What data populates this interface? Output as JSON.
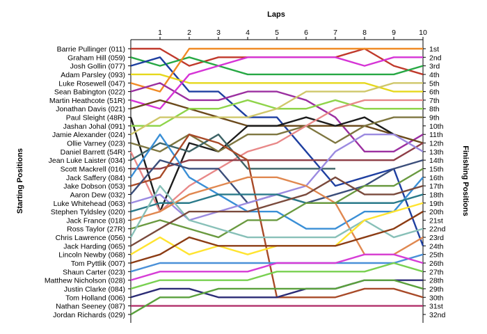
{
  "chart_data": {
    "type": "line",
    "title": "Laps",
    "ylabel_left": "Starting Positions",
    "ylabel_right": "Finishing Positions",
    "laps": [
      1,
      2,
      3,
      4,
      5,
      6,
      7,
      8,
      9,
      10
    ],
    "start_labels": [
      "Barrie Pullinger (011)",
      "Graham Hill (059)",
      "Josh Gollin (077)",
      "Adam Parsley (093)",
      "Luke Rosewell (047)",
      "Sean Babington (022)",
      "Martin Heathcote (51R)",
      "Jonathan Davis (021)",
      "Paul Sleight (48R)",
      "Jashan Johal (091)",
      "Jamie Alexander (024)",
      "Ollie Varney (023)",
      "Daniel Barrett (54R)",
      "Jean Luke Laister (034)",
      "Scott Mackrell (016)",
      "Jack Saffery (084)",
      "Jake Dobson (053)",
      "Aaron Dew (032)",
      "Luke Whitehead (063)",
      "Stephen Tyldsley (020)",
      "Jack France (018)",
      "Ross Taylor (27R)",
      "Chris Lawrence (056)",
      "Jack Harding (065)",
      "Lincoln Newby (068)",
      "Tom Pyttlik (007)",
      "Shaun Carter (023)",
      "Matthew Nicholson (028)",
      "Justin Clarke (084)",
      "Tom Holland (006)",
      "Nathan Seeney (087)",
      "Jordan Richards (029)"
    ],
    "finish_labels": [
      "1st",
      "2nd",
      "3rd",
      "4th",
      "5th",
      "6th",
      "7th",
      "8th",
      "9th",
      "10th",
      "11th",
      "12th",
      "13th",
      "14th",
      "15th",
      "16th",
      "17th",
      "18th",
      "19th",
      "20th",
      "21st",
      "22nd",
      "23rd",
      "24th",
      "25th",
      "26th",
      "27th",
      "28th",
      "29th",
      "30th",
      "31st",
      "32nd"
    ],
    "series": [
      {
        "color": "#c0392b",
        "positions": [
          1,
          3,
          2,
          2,
          2,
          2,
          2,
          1,
          3,
          4
        ]
      },
      {
        "color": "#27a844",
        "positions": [
          3,
          2,
          3,
          4,
          4,
          4,
          4,
          4,
          4,
          3
        ]
      },
      {
        "color": "#1e3fa0",
        "positions": [
          2,
          6,
          6,
          9,
          9,
          13,
          17,
          16,
          15,
          24
        ]
      },
      {
        "color": "#e6d81c",
        "positions": [
          4,
          5,
          5,
          5,
          5,
          5,
          5,
          5,
          6,
          6
        ]
      },
      {
        "color": "#f08a24",
        "positions": [
          6,
          1,
          1,
          1,
          1,
          1,
          1,
          1,
          1,
          1
        ]
      },
      {
        "color": "#9b2fa0",
        "positions": [
          5,
          7,
          7,
          6,
          6,
          7,
          9,
          13,
          13,
          11
        ]
      },
      {
        "color": "#d634d6",
        "positions": [
          8,
          4,
          3,
          2,
          2,
          2,
          2,
          3,
          2,
          2
        ]
      },
      {
        "color": "#6b4a1c",
        "positions": [
          7,
          8,
          9,
          10,
          10,
          10,
          10,
          10,
          11,
          12
        ]
      },
      {
        "color": "#1c1c1c",
        "positions": [
          20,
          12,
          13,
          10,
          10,
          9,
          10,
          9,
          11,
          null
        ]
      },
      {
        "color": "#8fd44a",
        "positions": [
          10,
          8,
          8,
          7,
          8,
          8,
          7,
          8,
          8,
          8
        ]
      },
      {
        "color": "#cfc76a",
        "positions": [
          9,
          9,
          9,
          9,
          8,
          6,
          6,
          6,
          5,
          5
        ]
      },
      {
        "color": "#7e7640",
        "positions": [
          13,
          11,
          13,
          11,
          11,
          10,
          12,
          10,
          9,
          9
        ]
      },
      {
        "color": "#e88888",
        "positions": [
          20,
          17,
          15,
          13,
          12,
          10,
          8,
          7,
          7,
          7
        ]
      },
      {
        "color": "#3d6366",
        "positions": [
          12,
          13,
          11,
          15,
          15,
          15,
          15,
          null,
          null,
          null
        ]
      },
      {
        "color": "#8e3d46",
        "positions": [
          15,
          14,
          14,
          14,
          14,
          14,
          14,
          14,
          14,
          12
        ]
      },
      {
        "color": "#3a8fd6",
        "positions": [
          11,
          16,
          18,
          20,
          20,
          22,
          22,
          20,
          20,
          16
        ]
      },
      {
        "color": "#a84a28",
        "positions": [
          16,
          11,
          12,
          14,
          30,
          30,
          30,
          29,
          29,
          30
        ]
      },
      {
        "color": "#3b4e7a",
        "positions": [
          14,
          15,
          15,
          19,
          18,
          19,
          18,
          17,
          15,
          14
        ]
      },
      {
        "color": "#9b8ae0",
        "positions": [
          18,
          21,
          20,
          19,
          18,
          17,
          13,
          11,
          11,
          13
        ]
      },
      {
        "color": "#2a7a8a",
        "positions": [
          19,
          19,
          18,
          18,
          18,
          19,
          19,
          19,
          19,
          18
        ]
      },
      {
        "color": "#e08850",
        "positions": [
          20,
          18,
          17,
          16,
          16,
          17,
          19,
          25,
          25,
          23
        ]
      },
      {
        "color": "#6a9a40",
        "positions": [
          21,
          22,
          23,
          21,
          21,
          19,
          19,
          17,
          17,
          15
        ]
      },
      {
        "color": "#88c0b8",
        "positions": [
          17,
          21,
          22,
          23,
          23,
          23,
          23,
          21,
          23,
          22
        ]
      },
      {
        "color": "#7a4a3c",
        "positions": [
          22,
          20,
          20,
          20,
          19,
          18,
          16,
          18,
          18,
          17
        ]
      },
      {
        "color": "#ffe430",
        "positions": [
          23,
          25,
          24,
          25,
          24,
          24,
          24,
          21,
          20,
          19
        ]
      },
      {
        "color": "#8c3c14",
        "positions": [
          25,
          23,
          24,
          24,
          24,
          24,
          24,
          23,
          22,
          20
        ]
      },
      {
        "color": "#4a90d8",
        "positions": [
          26,
          26,
          26,
          26,
          26,
          26,
          26,
          26,
          26,
          25
        ]
      },
      {
        "color": "#d63cd6",
        "positions": [
          27,
          27,
          27,
          27,
          26,
          26,
          26,
          25,
          25,
          26
        ]
      },
      {
        "color": "#78d050",
        "positions": [
          28,
          28,
          28,
          28,
          27,
          27,
          27,
          27,
          26,
          27
        ]
      },
      {
        "color": "#2b2b75",
        "positions": [
          29,
          29,
          30,
          30,
          30,
          29,
          29,
          28,
          28,
          28
        ]
      },
      {
        "color": "#b0306a",
        "positions": [
          31,
          31,
          31,
          31,
          31,
          31,
          31,
          31,
          31,
          31
        ]
      },
      {
        "color": "#5aa03c",
        "positions": [
          30,
          30,
          29,
          29,
          29,
          29,
          29,
          28,
          28,
          29
        ]
      }
    ],
    "legend": "none",
    "grid": false
  }
}
